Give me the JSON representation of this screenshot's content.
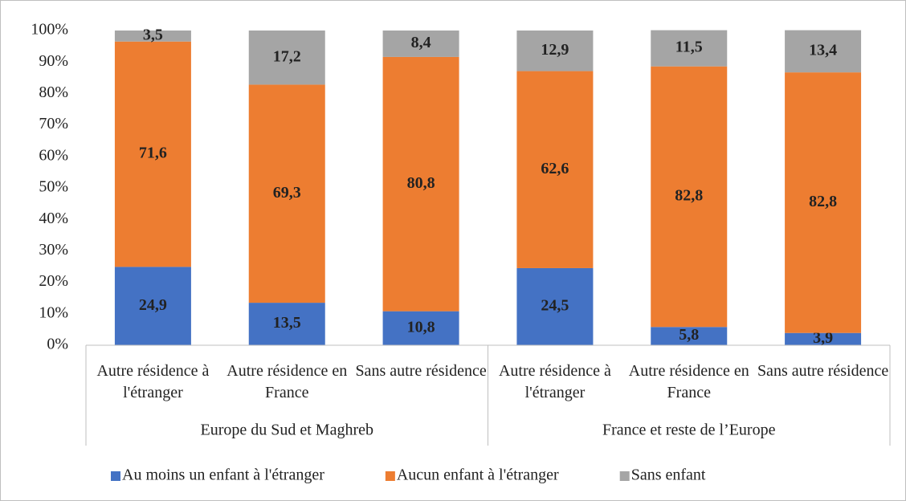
{
  "chart_data": {
    "type": "stacked-bar",
    "categories": [
      "Autre résidence à l'étranger",
      "Autre résidence en France",
      "Sans autre résidence",
      "Autre résidence à l'étranger",
      "Autre résidence en France",
      "Sans autre résidence"
    ],
    "groups": [
      {
        "name": "Europe du Sud et Maghreb",
        "span": 3
      },
      {
        "name": "France et reste de l’Europe",
        "span": 3
      }
    ],
    "series": [
      {
        "name": "Au moins un enfant à l'étranger",
        "color": "#4472c4",
        "values": [
          24.9,
          13.5,
          10.8,
          24.5,
          5.8,
          3.9
        ],
        "value_labels": [
          "24,9",
          "13,5",
          "10,8",
          "24,5",
          "5,8",
          "3,9"
        ]
      },
      {
        "name": "Aucun enfant à l'étranger",
        "color": "#ed7d31",
        "values": [
          71.6,
          69.3,
          80.8,
          62.6,
          82.8,
          82.8
        ],
        "value_labels": [
          "71,6",
          "69,3",
          "80,8",
          "62,6",
          "82,8",
          "82,8"
        ]
      },
      {
        "name": "Sans enfant",
        "color": "#a5a5a5",
        "values": [
          3.5,
          17.2,
          8.4,
          12.9,
          11.5,
          13.4
        ],
        "value_labels": [
          "3,5",
          "17,2",
          "8,4",
          "12,9",
          "11,5",
          "13,4"
        ]
      }
    ],
    "ylim": [
      0,
      100
    ],
    "yticks": [
      {
        "value": 0,
        "label": "0%"
      },
      {
        "value": 10,
        "label": "10%"
      },
      {
        "value": 20,
        "label": "20%"
      },
      {
        "value": 30,
        "label": "30%"
      },
      {
        "value": 40,
        "label": "40%"
      },
      {
        "value": 50,
        "label": "50%"
      },
      {
        "value": 60,
        "label": "60%"
      },
      {
        "value": 70,
        "label": "70%"
      },
      {
        "value": 80,
        "label": "80%"
      },
      {
        "value": 90,
        "label": "90%"
      },
      {
        "value": 100,
        "label": "100%"
      }
    ],
    "legend": "bottom"
  }
}
